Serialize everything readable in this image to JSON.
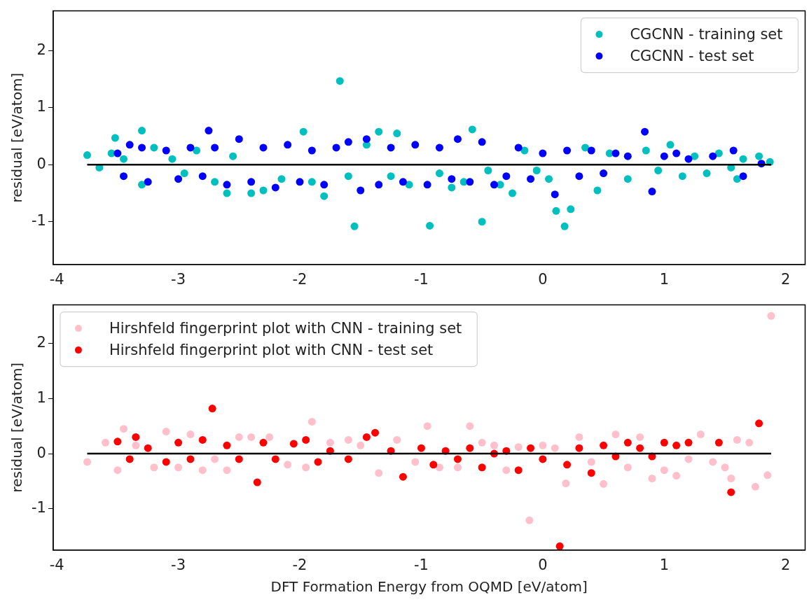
{
  "chart_data": [
    {
      "type": "scatter",
      "ylabel": "residual [eV/atom]",
      "xlim": [
        -4.03,
        2.16
      ],
      "xticks": [
        -4,
        -3,
        -2,
        -1,
        0,
        1,
        2
      ],
      "ylim": [
        -1.75,
        2.7
      ],
      "yticks": [
        -1,
        0,
        1,
        2
      ],
      "legend": "top right",
      "marker": "circle",
      "series": [
        {
          "name": "CGCNN - training set",
          "color": "#00bfbf",
          "x": [
            -3.75,
            -3.65,
            -3.55,
            -3.52,
            -3.45,
            -3.3,
            -3.3,
            -3.2,
            -3.05,
            -2.95,
            -2.85,
            -2.7,
            -2.6,
            -2.55,
            -2.4,
            -2.3,
            -2.15,
            -1.97,
            -1.9,
            -1.8,
            -1.67,
            -1.6,
            -1.55,
            -1.45,
            -1.35,
            -1.25,
            -1.2,
            -1.1,
            -0.93,
            -0.85,
            -0.75,
            -0.65,
            -0.58,
            -0.5,
            -0.45,
            -0.35,
            -0.25,
            -0.15,
            -0.05,
            0.05,
            0.11,
            0.18,
            0.23,
            0.35,
            0.45,
            0.55,
            0.7,
            0.85,
            0.95,
            1.05,
            1.15,
            1.25,
            1.35,
            1.45,
            1.55,
            1.6,
            1.65,
            1.78,
            1.87
          ],
          "values": [
            0.17,
            -0.05,
            0.2,
            0.47,
            0.1,
            0.6,
            -0.35,
            0.3,
            0.1,
            -0.15,
            0.25,
            -0.3,
            -0.5,
            0.15,
            -0.5,
            -0.45,
            -0.25,
            0.58,
            -0.3,
            -0.55,
            1.47,
            -0.2,
            -1.08,
            0.35,
            0.58,
            -0.2,
            0.55,
            -0.35,
            -1.07,
            -0.15,
            -0.4,
            -0.3,
            0.62,
            -1.0,
            -0.1,
            -0.35,
            -0.5,
            0.25,
            -0.1,
            -0.25,
            -0.81,
            -1.08,
            -0.78,
            0.3,
            -0.45,
            0.2,
            -0.25,
            0.25,
            -0.1,
            0.35,
            -0.2,
            0.15,
            -0.15,
            0.2,
            -0.05,
            -0.25,
            0.1,
            0.15,
            0.05
          ]
        },
        {
          "name": "CGCNN - test set",
          "color": "#0000ff",
          "x": [
            -3.5,
            -3.45,
            -3.4,
            -3.3,
            -3.25,
            -3.1,
            -3.0,
            -2.9,
            -2.8,
            -2.75,
            -2.7,
            -2.6,
            -2.5,
            -2.4,
            -2.3,
            -2.2,
            -2.1,
            -2.0,
            -1.9,
            -1.8,
            -1.7,
            -1.6,
            -1.5,
            -1.45,
            -1.35,
            -1.25,
            -1.15,
            -1.05,
            -0.95,
            -0.85,
            -0.75,
            -0.7,
            -0.6,
            -0.5,
            -0.4,
            -0.3,
            -0.2,
            -0.1,
            0.0,
            0.1,
            0.2,
            0.3,
            0.4,
            0.5,
            0.6,
            0.7,
            0.84,
            0.9,
            1.0,
            1.1,
            1.2,
            1.4,
            1.57,
            1.65,
            1.8
          ],
          "values": [
            0.2,
            -0.2,
            0.35,
            0.3,
            -0.3,
            0.25,
            -0.25,
            0.3,
            -0.2,
            0.6,
            0.3,
            -0.35,
            0.45,
            -0.3,
            0.3,
            -0.4,
            0.35,
            -0.3,
            0.25,
            -0.35,
            0.3,
            0.4,
            -0.45,
            0.45,
            -0.35,
            0.3,
            -0.3,
            0.35,
            -0.35,
            0.3,
            -0.25,
            0.45,
            -0.3,
            0.4,
            -0.35,
            -0.2,
            0.3,
            -0.25,
            0.2,
            -0.52,
            0.25,
            -0.2,
            0.25,
            -0.15,
            0.2,
            0.15,
            0.58,
            -0.47,
            0.15,
            0.2,
            0.1,
            0.15,
            0.25,
            -0.2,
            0.02
          ]
        },
        {
          "type": "line",
          "color": "#000000",
          "marker": "none",
          "line_style": "solid",
          "x": [
            -3.75,
            1.88
          ],
          "values": [
            0,
            0
          ]
        }
      ]
    },
    {
      "type": "scatter",
      "xlabel": "DFT Formation Energy from OQMD [eV/atom]",
      "ylabel": "residual [eV/atom]",
      "xlim": [
        -4.03,
        2.16
      ],
      "xticks": [
        -4,
        -3,
        -2,
        -1,
        0,
        1,
        2
      ],
      "ylim": [
        -1.75,
        2.7
      ],
      "yticks": [
        -1,
        0,
        1,
        2
      ],
      "legend": "top left",
      "marker": "circle",
      "series": [
        {
          "name": "Hirshfeld fingerprint plot with CNN - training set",
          "color": "#ffc0cb",
          "x": [
            -3.75,
            -3.6,
            -3.5,
            -3.45,
            -3.35,
            -3.2,
            -3.1,
            -3.0,
            -2.9,
            -2.8,
            -2.7,
            -2.6,
            -2.5,
            -2.4,
            -2.25,
            -2.1,
            -1.95,
            -1.9,
            -1.75,
            -1.6,
            -1.5,
            -1.35,
            -1.2,
            -1.05,
            -0.95,
            -0.85,
            -0.7,
            -0.6,
            -0.5,
            -0.4,
            -0.3,
            -0.2,
            -0.11,
            0.0,
            0.1,
            0.19,
            0.3,
            0.4,
            0.5,
            0.6,
            0.7,
            0.8,
            0.9,
            1.0,
            1.1,
            1.2,
            1.3,
            1.4,
            1.5,
            1.55,
            1.6,
            1.7,
            1.75,
            1.85,
            1.88
          ],
          "values": [
            -0.15,
            0.2,
            -0.3,
            0.45,
            0.15,
            -0.25,
            0.4,
            -0.25,
            0.35,
            -0.3,
            -0.1,
            -0.3,
            0.3,
            0.3,
            0.3,
            -0.2,
            -0.25,
            0.58,
            0.2,
            0.25,
            0.15,
            -0.35,
            0.25,
            -0.15,
            0.5,
            -0.25,
            -0.25,
            0.5,
            0.2,
            0.15,
            -0.3,
            0.12,
            -1.21,
            0.15,
            0.1,
            -0.54,
            0.3,
            -0.15,
            -0.55,
            0.35,
            -0.25,
            0.3,
            -0.45,
            -0.3,
            -0.4,
            -0.1,
            0.35,
            -0.15,
            -0.25,
            -0.45,
            0.25,
            0.2,
            -0.6,
            -0.39,
            2.5
          ]
        },
        {
          "name": "Hirshfeld fingerprint plot with CNN - test set",
          "color": "#ff0000",
          "x": [
            -3.5,
            -3.4,
            -3.35,
            -3.25,
            -3.1,
            -3.0,
            -2.9,
            -2.8,
            -2.72,
            -2.6,
            -2.5,
            -2.35,
            -2.3,
            -2.2,
            -2.05,
            -1.95,
            -1.85,
            -1.75,
            -1.6,
            -1.45,
            -1.38,
            -1.25,
            -1.15,
            -1.0,
            -0.9,
            -0.8,
            -0.7,
            -0.6,
            -0.5,
            -0.4,
            -0.3,
            -0.2,
            -0.1,
            0.0,
            0.14,
            0.2,
            0.3,
            0.4,
            0.5,
            0.6,
            0.7,
            0.8,
            0.9,
            1.0,
            1.1,
            1.2,
            1.45,
            1.55,
            1.78
          ],
          "values": [
            0.22,
            -0.1,
            0.3,
            0.1,
            -0.15,
            0.2,
            -0.1,
            0.25,
            0.82,
            0.15,
            -0.1,
            -0.52,
            0.2,
            -0.1,
            0.18,
            0.25,
            -0.15,
            0.05,
            -0.1,
            0.3,
            0.38,
            0.05,
            -0.42,
            0.1,
            -0.2,
            0.05,
            -0.1,
            0.1,
            -0.25,
            0.0,
            0.05,
            -0.3,
            0.1,
            -0.1,
            -1.68,
            -0.2,
            0.1,
            -0.35,
            0.15,
            -0.05,
            0.2,
            0.1,
            -0.05,
            0.2,
            0.15,
            0.2,
            0.2,
            -0.7,
            0.55
          ]
        },
        {
          "type": "line",
          "color": "#000000",
          "marker": "none",
          "line_style": "solid",
          "x": [
            -3.75,
            1.88
          ],
          "values": [
            0,
            0
          ]
        }
      ]
    }
  ]
}
